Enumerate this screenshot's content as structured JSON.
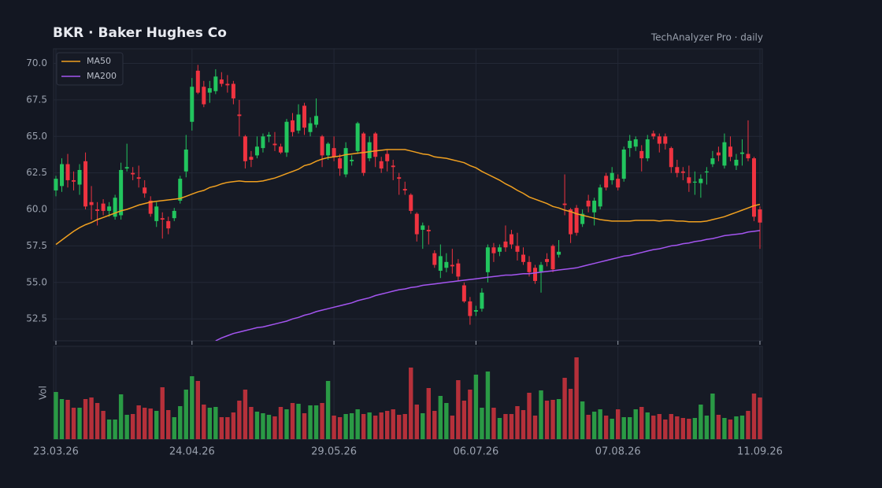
{
  "chart_data": {
    "type": "candlestick",
    "title": "BKR  ·  Baker Hughes Co",
    "subtitle": "TechAnalyzer Pro · daily",
    "categories": [
      "23.03.26",
      null,
      null,
      null,
      null,
      null,
      null,
      null,
      null,
      null,
      null,
      null,
      null,
      null,
      null,
      null,
      null,
      null,
      null,
      null,
      null,
      null,
      null,
      "24.04.26",
      null,
      null,
      null,
      null,
      null,
      null,
      null,
      null,
      null,
      null,
      null,
      null,
      null,
      null,
      null,
      null,
      null,
      null,
      null,
      null,
      null,
      null,
      null,
      "29.05.26",
      null,
      null,
      null,
      null,
      null,
      null,
      null,
      null,
      null,
      null,
      null,
      null,
      null,
      null,
      null,
      null,
      null,
      null,
      null,
      null,
      null,
      null,
      null,
      "06.07.26",
      null,
      null,
      null,
      null,
      null,
      null,
      null,
      null,
      null,
      null,
      null,
      null,
      null,
      null,
      null,
      null,
      null,
      null,
      null,
      null,
      null,
      null,
      null,
      "07.08.26",
      null,
      null,
      null,
      null,
      null,
      null,
      null,
      null,
      null,
      null,
      null,
      null,
      null,
      null,
      null,
      null,
      null,
      null,
      null,
      null,
      null,
      null,
      null,
      "11.09.26"
    ],
    "open": [
      61.3,
      61.6,
      63.1,
      62.0,
      61.7,
      63.3,
      60.5,
      60.0,
      60.4,
      59.9,
      59.5,
      59.6,
      62.8,
      62.5,
      62.2,
      61.5,
      60.6,
      59.2,
      59.4,
      59.2,
      59.4,
      60.6,
      62.6,
      66.0,
      69.5,
      68.4,
      68.0,
      68.1,
      68.9,
      68.6,
      68.6,
      66.5,
      65.0,
      63.6,
      63.7,
      64.2,
      65.0,
      64.5,
      64.3,
      63.9,
      66.1,
      65.4,
      67.1,
      65.3,
      65.8,
      65.0,
      63.7,
      64.2,
      63.5,
      62.4,
      63.3,
      64.0,
      65.2,
      63.5,
      65.2,
      63.3,
      63.8,
      63.0,
      62.2,
      61.4,
      61.0,
      59.7,
      58.6,
      58.6,
      57.0,
      55.8,
      56.0,
      56.2,
      56.3,
      54.8,
      53.7,
      53.0,
      53.2,
      55.7,
      57.4,
      57.1,
      57.8,
      58.3,
      57.5,
      56.9,
      56.4,
      56.0,
      55.7,
      56.6,
      57.5,
      56.9,
      60.4,
      60.0,
      60.1,
      59.0,
      60.6,
      59.8,
      60.2,
      62.3,
      62.0,
      62.1,
      62.1,
      64.2,
      64.3,
      64.0,
      63.5,
      65.2,
      65.0,
      65.0,
      64.2,
      62.9,
      62.6,
      62.2,
      61.9,
      61.8,
      62.6,
      63.1,
      63.9,
      63.0,
      64.3,
      63.0,
      63.8,
      63.8,
      63.5,
      60.0
    ],
    "high": [
      62.3,
      63.5,
      63.8,
      62.6,
      63.1,
      63.9,
      61.6,
      60.5,
      60.7,
      60.5,
      61.0,
      63.2,
      64.5,
      62.9,
      63.0,
      62.0,
      60.9,
      60.5,
      59.8,
      59.5,
      60.1,
      62.3,
      65.1,
      69.0,
      69.9,
      68.8,
      68.8,
      69.6,
      69.4,
      69.2,
      68.8,
      67.5,
      65.1,
      64.0,
      65.0,
      65.2,
      65.3,
      65.3,
      64.5,
      66.2,
      66.6,
      67.2,
      67.3,
      66.3,
      67.6,
      65.1,
      64.6,
      65.0,
      63.8,
      64.6,
      63.7,
      66.0,
      65.3,
      65.0,
      65.3,
      63.6,
      64.1,
      63.4,
      62.5,
      61.9,
      61.1,
      59.8,
      59.1,
      58.9,
      57.2,
      57.6,
      57.0,
      57.3,
      56.6,
      55.0,
      54.0,
      53.4,
      54.6,
      57.6,
      57.7,
      57.6,
      58.9,
      58.6,
      58.4,
      57.4,
      56.8,
      56.2,
      56.4,
      57.0,
      57.6,
      57.9,
      62.4,
      60.1,
      60.3,
      60.0,
      61.0,
      60.8,
      61.7,
      62.5,
      62.9,
      62.4,
      64.3,
      65.1,
      65.0,
      64.4,
      65.1,
      65.4,
      65.2,
      65.2,
      64.3,
      63.4,
      62.9,
      63.0,
      62.6,
      62.4,
      62.9,
      64.0,
      64.3,
      65.2,
      65.0,
      63.8,
      64.8,
      66.1,
      63.6,
      60.2
    ],
    "low": [
      60.9,
      61.2,
      61.5,
      61.3,
      61.0,
      60.0,
      59.3,
      58.9,
      59.6,
      59.5,
      59.3,
      59.3,
      62.6,
      62.0,
      61.5,
      60.8,
      59.5,
      58.8,
      58.0,
      58.3,
      59.2,
      60.4,
      62.2,
      65.4,
      67.9,
      67.0,
      67.3,
      67.9,
      68.4,
      68.0,
      67.2,
      65.0,
      62.8,
      62.9,
      63.5,
      63.9,
      64.6,
      64.0,
      63.8,
      63.6,
      65.0,
      65.2,
      65.1,
      65.0,
      65.6,
      62.9,
      63.4,
      63.3,
      62.3,
      62.2,
      63.0,
      63.8,
      62.3,
      63.3,
      62.9,
      62.5,
      62.6,
      62.0,
      61.0,
      61.0,
      59.7,
      57.8,
      57.3,
      57.6,
      56.0,
      55.3,
      55.7,
      55.6,
      55.1,
      53.6,
      52.1,
      52.7,
      53.0,
      55.0,
      56.4,
      56.8,
      57.1,
      57.3,
      56.5,
      56.2,
      55.4,
      54.9,
      54.3,
      56.1,
      55.7,
      56.7,
      59.6,
      57.7,
      58.2,
      58.8,
      59.8,
      58.9,
      60.0,
      61.3,
      61.7,
      61.3,
      61.9,
      63.6,
      64.0,
      62.6,
      63.3,
      64.8,
      63.9,
      64.1,
      62.5,
      62.2,
      62.0,
      61.2,
      61.0,
      60.8,
      61.7,
      62.9,
      63.3,
      62.8,
      63.3,
      62.7,
      63.0,
      63.3,
      59.2,
      57.3
    ],
    "close": [
      62.1,
      63.1,
      62.0,
      61.9,
      62.7,
      60.2,
      60.3,
      59.9,
      59.9,
      60.2,
      60.8,
      62.7,
      62.9,
      62.4,
      62.1,
      61.1,
      59.7,
      60.2,
      59.3,
      58.7,
      59.9,
      62.1,
      64.1,
      68.4,
      68.0,
      67.2,
      68.3,
      69.1,
      68.6,
      68.5,
      67.6,
      66.4,
      63.3,
      63.4,
      64.3,
      65.0,
      65.1,
      64.4,
      63.9,
      66.0,
      65.3,
      66.5,
      65.6,
      65.9,
      66.4,
      63.7,
      64.5,
      63.6,
      62.8,
      64.2,
      63.4,
      65.9,
      62.5,
      64.6,
      63.6,
      62.8,
      63.3,
      62.9,
      62.1,
      61.3,
      59.9,
      58.3,
      58.9,
      58.5,
      56.2,
      56.8,
      56.4,
      56.1,
      55.4,
      53.7,
      52.7,
      53.1,
      54.3,
      57.4,
      57.0,
      57.4,
      57.4,
      57.6,
      57.1,
      56.4,
      55.7,
      55.1,
      56.2,
      56.4,
      55.9,
      57.1,
      60.3,
      58.3,
      58.4,
      59.7,
      60.2,
      60.6,
      61.5,
      61.5,
      62.5,
      61.5,
      64.1,
      64.7,
      64.8,
      63.5,
      64.8,
      65.0,
      64.5,
      64.5,
      62.9,
      62.5,
      62.5,
      61.8,
      61.9,
      62.1,
      62.6,
      63.5,
      63.7,
      64.6,
      63.6,
      63.4,
      63.9,
      63.5,
      59.5,
      59.1
    ],
    "up_color": "#22c55e",
    "down_color": "#ef3340",
    "volume": {
      "label": "Vol",
      "ylim": [
        0,
        11.8
      ],
      "up_color": "#2a9a45",
      "down_color": "#b5303a",
      "values": [
        6.0,
        5.1,
        5.0,
        4.0,
        4.0,
        5.1,
        5.3,
        4.6,
        3.6,
        2.5,
        2.5,
        5.7,
        3.1,
        3.2,
        4.3,
        4.0,
        3.9,
        3.6,
        6.6,
        3.7,
        2.8,
        4.2,
        6.3,
        8.0,
        7.4,
        4.4,
        4.0,
        4.1,
        2.8,
        2.8,
        3.4,
        4.9,
        6.3,
        4.1,
        3.5,
        3.3,
        3.1,
        2.9,
        4.1,
        3.8,
        4.6,
        4.5,
        3.3,
        4.3,
        4.3,
        4.6,
        7.4,
        3.0,
        2.8,
        3.2,
        3.3,
        3.8,
        3.2,
        3.4,
        3.0,
        3.4,
        3.6,
        3.8,
        3.1,
        3.2,
        9.1,
        4.4,
        3.3,
        6.5,
        3.6,
        5.5,
        4.6,
        3.0,
        7.5,
        4.9,
        6.3,
        8.2,
        4.0,
        8.6,
        4.0,
        2.7,
        3.2,
        3.2,
        4.2,
        3.7,
        5.9,
        3.0,
        6.2,
        4.9,
        5.0,
        5.1,
        7.8,
        6.4,
        10.4,
        4.8,
        3.1,
        3.5,
        3.8,
        3.0,
        2.6,
        3.8,
        2.8,
        2.8,
        3.8,
        4.1,
        3.4,
        3.0,
        3.2,
        2.5,
        3.2,
        2.9,
        2.7,
        2.6,
        2.7,
        4.4,
        3.0,
        5.8,
        3.1,
        2.7,
        2.5,
        2.9,
        3.0,
        3.6,
        5.8,
        5.3
      ]
    },
    "series": [
      {
        "name": "MA50",
        "color": "#f0a020",
        "values": [
          57.6,
          57.9,
          58.2,
          58.5,
          58.75,
          58.95,
          59.1,
          59.3,
          59.45,
          59.6,
          59.75,
          59.9,
          60.0,
          60.15,
          60.3,
          60.4,
          60.5,
          60.55,
          60.6,
          60.65,
          60.7,
          60.75,
          60.9,
          61.05,
          61.2,
          61.3,
          61.5,
          61.6,
          61.75,
          61.85,
          61.9,
          61.95,
          61.9,
          61.9,
          61.9,
          61.95,
          62.05,
          62.15,
          62.3,
          62.45,
          62.6,
          62.75,
          63.0,
          63.1,
          63.3,
          63.45,
          63.55,
          63.6,
          63.65,
          63.75,
          63.8,
          63.85,
          63.9,
          63.95,
          64.0,
          64.05,
          64.1,
          64.1,
          64.1,
          64.1,
          64.0,
          63.9,
          63.8,
          63.75,
          63.6,
          63.55,
          63.5,
          63.4,
          63.3,
          63.2,
          63.0,
          62.85,
          62.6,
          62.4,
          62.2,
          62.0,
          61.75,
          61.55,
          61.3,
          61.1,
          60.85,
          60.7,
          60.55,
          60.4,
          60.2,
          60.1,
          59.95,
          59.85,
          59.7,
          59.6,
          59.5,
          59.4,
          59.3,
          59.25,
          59.2,
          59.2,
          59.2,
          59.2,
          59.25,
          59.25,
          59.25,
          59.25,
          59.2,
          59.25,
          59.25,
          59.2,
          59.2,
          59.15,
          59.15,
          59.15,
          59.2,
          59.3,
          59.4,
          59.5,
          59.65,
          59.8,
          59.95,
          60.1,
          60.25,
          60.35
        ]
      },
      {
        "name": "MA200",
        "color": "#a455f0",
        "values": [
          null,
          null,
          null,
          null,
          null,
          null,
          null,
          null,
          null,
          null,
          null,
          null,
          null,
          null,
          null,
          null,
          null,
          null,
          null,
          null,
          null,
          null,
          null,
          null,
          null,
          null,
          null,
          51.0,
          51.2,
          51.35,
          51.5,
          51.6,
          51.7,
          51.8,
          51.9,
          51.95,
          52.05,
          52.15,
          52.25,
          52.35,
          52.5,
          52.6,
          52.75,
          52.85,
          53.0,
          53.1,
          53.2,
          53.3,
          53.4,
          53.5,
          53.6,
          53.75,
          53.85,
          53.95,
          54.1,
          54.2,
          54.3,
          54.4,
          54.5,
          54.55,
          54.65,
          54.7,
          54.8,
          54.85,
          54.9,
          54.95,
          55.0,
          55.05,
          55.1,
          55.15,
          55.2,
          55.25,
          55.3,
          55.35,
          55.4,
          55.45,
          55.5,
          55.5,
          55.55,
          55.6,
          55.6,
          55.65,
          55.7,
          55.75,
          55.8,
          55.85,
          55.9,
          55.95,
          56.0,
          56.1,
          56.2,
          56.3,
          56.4,
          56.5,
          56.6,
          56.7,
          56.8,
          56.85,
          56.95,
          57.05,
          57.15,
          57.25,
          57.3,
          57.4,
          57.5,
          57.55,
          57.65,
          57.7,
          57.8,
          57.85,
          57.95,
          58.0,
          58.1,
          58.2,
          58.25,
          58.3,
          58.35,
          58.45,
          58.5,
          58.55
        ]
      }
    ],
    "ylim": [
      51,
      71
    ],
    "yticks": [
      52.5,
      {
        "value": 55,
        "label": "55.0"
      },
      57.5,
      {
        "value": 60,
        "label": "60.0"
      },
      62.5,
      {
        "value": 65,
        "label": "65.0"
      },
      67.5,
      {
        "value": 70,
        "label": "70.0"
      }
    ],
    "grid": true,
    "legend": "upper left"
  }
}
